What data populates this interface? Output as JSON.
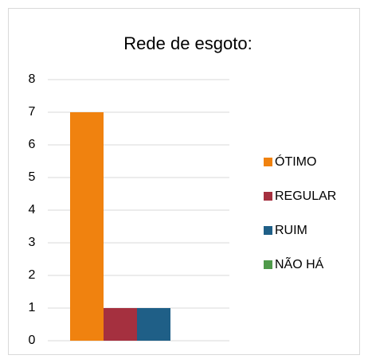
{
  "chart_data": {
    "type": "bar",
    "title": "Rede de esgoto:",
    "categories": [
      null
    ],
    "series": [
      {
        "name": "ÓTIMO",
        "color": "#f0820f",
        "values": [
          7
        ]
      },
      {
        "name": "REGULAR",
        "color": "#a5303f",
        "values": [
          1
        ]
      },
      {
        "name": "RUIM",
        "color": "#1f5f87",
        "values": [
          1
        ]
      },
      {
        "name": "NÃO HÁ",
        "color": "#4f9a4a",
        "values": [
          0
        ]
      }
    ],
    "ylim": [
      0,
      8
    ],
    "yticks": [
      0,
      1,
      2,
      3,
      4,
      5,
      6,
      7,
      8
    ],
    "grid": true,
    "legend": "right"
  }
}
